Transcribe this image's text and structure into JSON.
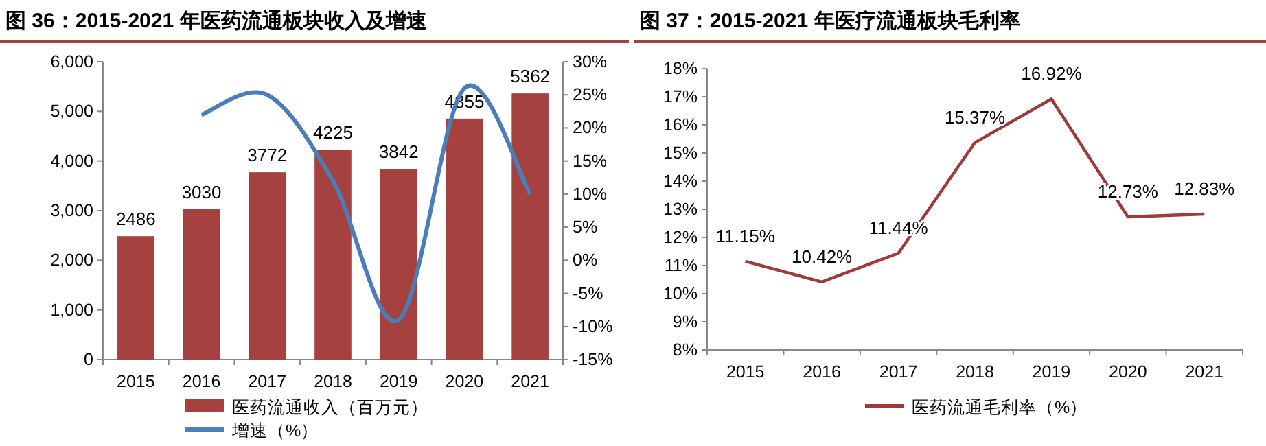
{
  "chart_data": [
    {
      "type": "bar",
      "title": "图 36：2015-2021 年医药流通板块收入及增速",
      "categories": [
        "2015",
        "2016",
        "2017",
        "2018",
        "2019",
        "2020",
        "2021"
      ],
      "series": [
        {
          "name": "医药流通收入（百万元）",
          "type": "bar",
          "color": "#a5423f",
          "values": [
            2486,
            3030,
            3772,
            4225,
            3842,
            4855,
            5362
          ],
          "value_labels": [
            "2486",
            "3030",
            "3772",
            "4225",
            "3842",
            "4855",
            "5362"
          ]
        },
        {
          "name": "增速（%）",
          "type": "line",
          "axis": "y2",
          "color": "#4a7ebb",
          "values": [
            null,
            22,
            25,
            12,
            -9,
            26,
            10
          ]
        }
      ],
      "ylim": [
        0,
        6000
      ],
      "yticks": [
        {
          "value": 0,
          "label": "0"
        },
        {
          "value": 1000,
          "label": "1,000"
        },
        {
          "value": 2000,
          "label": "2,000"
        },
        {
          "value": 3000,
          "label": "3,000"
        },
        {
          "value": 4000,
          "label": "4,000"
        },
        {
          "value": 5000,
          "label": "5,000"
        },
        {
          "value": 6000,
          "label": "6,000"
        }
      ],
      "y2lim": [
        -15,
        30
      ],
      "y2ticks": [
        {
          "value": -15,
          "label": "-15%"
        },
        {
          "value": -10,
          "label": "-10%"
        },
        {
          "value": -5,
          "label": "-5%"
        },
        {
          "value": 0,
          "label": "0%"
        },
        {
          "value": 5,
          "label": "5%"
        },
        {
          "value": 10,
          "label": "10%"
        },
        {
          "value": 15,
          "label": "15%"
        },
        {
          "value": 20,
          "label": "20%"
        },
        {
          "value": 25,
          "label": "25%"
        },
        {
          "value": 30,
          "label": "30%"
        }
      ],
      "legend": "bottom"
    },
    {
      "type": "line",
      "title": "图 37：2015-2021 年医疗流通板块毛利率",
      "categories": [
        "2015",
        "2016",
        "2017",
        "2018",
        "2019",
        "2020",
        "2021"
      ],
      "series": [
        {
          "name": "医药流通毛利率（%）",
          "color": "#9e3b39",
          "values": [
            11.15,
            10.42,
            11.44,
            15.37,
            16.92,
            12.73,
            12.83
          ],
          "value_labels": [
            "11.15%",
            "10.42%",
            "11.44%",
            "15.37%",
            "16.92%",
            "12.73%",
            "12.83%"
          ]
        }
      ],
      "ylim": [
        8,
        18
      ],
      "yticks": [
        {
          "value": 8,
          "label": "8%"
        },
        {
          "value": 9,
          "label": "9%"
        },
        {
          "value": 10,
          "label": "10%"
        },
        {
          "value": 11,
          "label": "11%"
        },
        {
          "value": 12,
          "label": "12%"
        },
        {
          "value": 13,
          "label": "13%"
        },
        {
          "value": 14,
          "label": "14%"
        },
        {
          "value": 15,
          "label": "15%"
        },
        {
          "value": 16,
          "label": "16%"
        },
        {
          "value": 17,
          "label": "17%"
        },
        {
          "value": 18,
          "label": "18%"
        }
      ],
      "legend": "bottom"
    }
  ]
}
